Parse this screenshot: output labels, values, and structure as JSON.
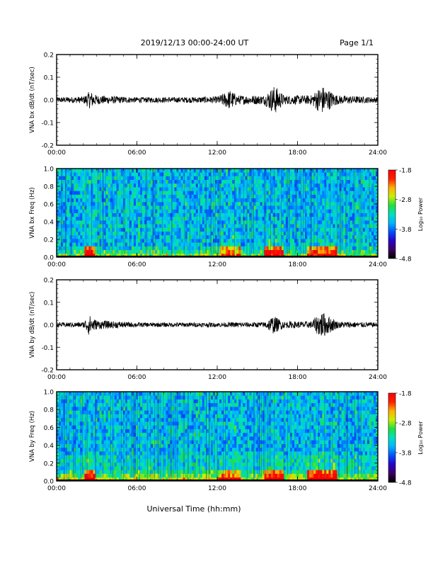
{
  "header": {
    "title": "2019/12/13  00:00-24:00 UT",
    "page": "Page 1/1"
  },
  "footer": {
    "xlabel": "Universal Time (hh:mm)"
  },
  "colorbar": {
    "label": "Log₁₀ Power",
    "ticks": [
      "-1.8",
      "-2.8",
      "-3.8",
      "-4.8"
    ],
    "range": [
      -4.8,
      -1.8
    ],
    "colormap": [
      "#000000",
      "#3b0060",
      "#2a00c8",
      "#0050ff",
      "#00b4ff",
      "#00e0c0",
      "#20e040",
      "#c8f000",
      "#ffb000",
      "#ff2000",
      "#ff0000"
    ]
  },
  "chart_data": [
    {
      "type": "line",
      "ylabel": "VNA bx dB/dt (nT/sec)",
      "ylim": [
        -0.2,
        0.2
      ],
      "yticks": [
        "0.2",
        "0.1",
        "0.0",
        "-0.1",
        "-0.2"
      ],
      "xticks": [
        "00:00",
        "06:00",
        "12:00",
        "18:00",
        "24:00"
      ],
      "xlim_hours": [
        0,
        24
      ],
      "amplitude_envelope": [
        {
          "hour": 0.0,
          "amp": 0.012
        },
        {
          "hour": 2.0,
          "amp": 0.015
        },
        {
          "hour": 2.5,
          "amp": 0.04
        },
        {
          "hour": 3.0,
          "amp": 0.02
        },
        {
          "hour": 6.0,
          "amp": 0.012
        },
        {
          "hour": 9.0,
          "amp": 0.012
        },
        {
          "hour": 12.0,
          "amp": 0.015
        },
        {
          "hour": 13.0,
          "amp": 0.045
        },
        {
          "hour": 13.5,
          "amp": 0.02
        },
        {
          "hour": 15.5,
          "amp": 0.02
        },
        {
          "hour": 16.3,
          "amp": 0.065
        },
        {
          "hour": 17.0,
          "amp": 0.02
        },
        {
          "hour": 19.0,
          "amp": 0.02
        },
        {
          "hour": 19.8,
          "amp": 0.065
        },
        {
          "hour": 21.0,
          "amp": 0.02
        },
        {
          "hour": 24.0,
          "amp": 0.012
        }
      ]
    },
    {
      "type": "heatmap",
      "ylabel": "VNA bx Freq (Hz)",
      "ylim": [
        0.0,
        1.0
      ],
      "yticks": [
        "1.0",
        "0.8",
        "0.6",
        "0.4",
        "0.2",
        "0.0"
      ],
      "xticks": [
        "00:00",
        "06:00",
        "12:00",
        "18:00",
        "24:00"
      ],
      "xlim_hours": [
        0,
        24
      ],
      "z_unit": "Log10 Power",
      "zlim": [
        -4.8,
        -1.8
      ]
    },
    {
      "type": "line",
      "ylabel": "VNA by dB/dt (nT/sec)",
      "ylim": [
        -0.2,
        0.2
      ],
      "yticks": [
        "0.2",
        "0.1",
        "0.0",
        "-0.1",
        "-0.2"
      ],
      "xticks": [
        "00:00",
        "06:00",
        "12:00",
        "18:00",
        "24:00"
      ],
      "xlim_hours": [
        0,
        24
      ],
      "amplitude_envelope": [
        {
          "hour": 0.0,
          "amp": 0.01
        },
        {
          "hour": 2.0,
          "amp": 0.012
        },
        {
          "hour": 2.4,
          "amp": 0.045
        },
        {
          "hour": 3.0,
          "amp": 0.02
        },
        {
          "hour": 6.0,
          "amp": 0.01
        },
        {
          "hour": 12.0,
          "amp": 0.01
        },
        {
          "hour": 15.5,
          "amp": 0.012
        },
        {
          "hour": 16.2,
          "amp": 0.04
        },
        {
          "hour": 17.0,
          "amp": 0.015
        },
        {
          "hour": 19.0,
          "amp": 0.015
        },
        {
          "hour": 19.8,
          "amp": 0.06
        },
        {
          "hour": 21.0,
          "amp": 0.015
        },
        {
          "hour": 24.0,
          "amp": 0.01
        }
      ]
    },
    {
      "type": "heatmap",
      "ylabel": "VNA by Freq (Hz)",
      "ylim": [
        0.0,
        1.0
      ],
      "yticks": [
        "1.0",
        "0.8",
        "0.6",
        "0.4",
        "0.2",
        "0.0"
      ],
      "xticks": [
        "00:00",
        "06:00",
        "12:00",
        "18:00",
        "24:00"
      ],
      "xlim_hours": [
        0,
        24
      ],
      "z_unit": "Log10 Power",
      "zlim": [
        -4.8,
        -1.8
      ]
    }
  ]
}
